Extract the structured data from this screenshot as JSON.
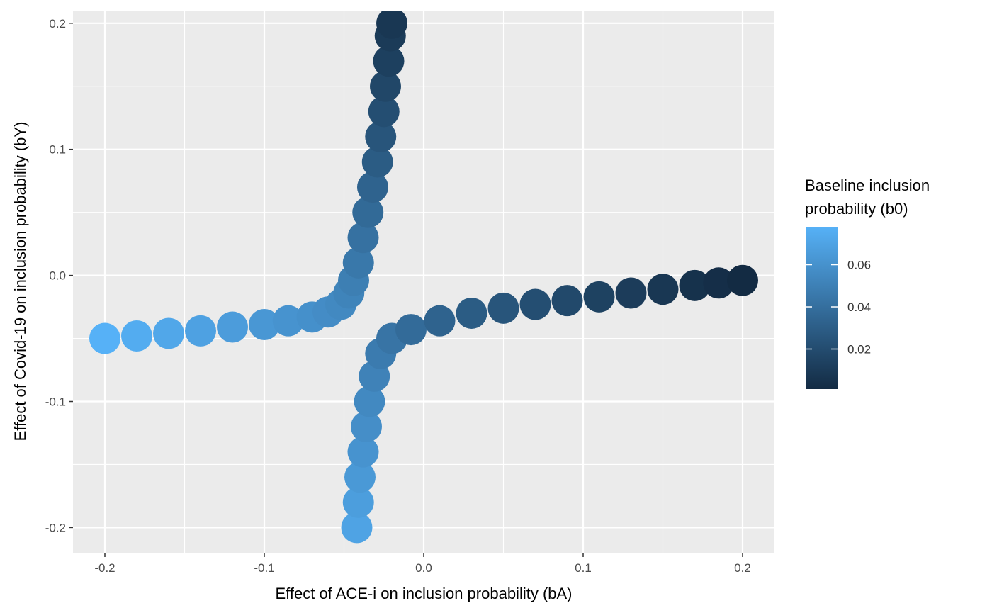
{
  "chart_data": {
    "type": "scatter",
    "title": "",
    "xlabel": "Effect of ACE-i on inclusion probability (bA)",
    "ylabel": "Effect of Covid-19 on inclusion probability (bY)",
    "xlim": [
      -0.22,
      0.22
    ],
    "ylim": [
      -0.22,
      0.21
    ],
    "x_ticks": [
      -0.2,
      -0.1,
      0.0,
      0.1,
      0.2
    ],
    "x_tick_labels": [
      "-0.2",
      "-0.1",
      "0.0",
      "0.1",
      "0.2"
    ],
    "y_ticks": [
      -0.2,
      -0.1,
      0.0,
      0.1,
      0.2
    ],
    "y_tick_labels": [
      "-0.2",
      "-0.1",
      "0.0",
      "0.1",
      "0.2"
    ],
    "grid": true,
    "color_scale": {
      "title_lines": [
        "Baseline inclusion",
        "probability (b0)"
      ],
      "range": [
        0.001,
        0.078
      ],
      "ticks": [
        0.02,
        0.04,
        0.06
      ],
      "tick_labels": [
        "0.02",
        "0.04",
        "0.06"
      ],
      "low_color": "#132B43",
      "high_color": "#56B1F7",
      "legend_placement": "right"
    },
    "branches": [
      {
        "name": "",
        "points": [
          {
            "x": -0.2,
            "y": -0.05,
            "b0": 0.078
          },
          {
            "x": -0.18,
            "y": -0.048,
            "b0": 0.075
          },
          {
            "x": -0.16,
            "y": -0.046,
            "b0": 0.072
          },
          {
            "x": -0.14,
            "y": -0.044,
            "b0": 0.069
          },
          {
            "x": -0.12,
            "y": -0.041,
            "b0": 0.066
          },
          {
            "x": -0.1,
            "y": -0.039,
            "b0": 0.063
          },
          {
            "x": -0.085,
            "y": -0.036,
            "b0": 0.061
          },
          {
            "x": -0.07,
            "y": -0.033,
            "b0": 0.059
          },
          {
            "x": -0.06,
            "y": -0.029,
            "b0": 0.057
          },
          {
            "x": -0.052,
            "y": -0.023,
            "b0": 0.055
          },
          {
            "x": -0.047,
            "y": -0.014,
            "b0": 0.052
          },
          {
            "x": -0.044,
            "y": -0.004,
            "b0": 0.049
          },
          {
            "x": -0.041,
            "y": 0.01,
            "b0": 0.045
          },
          {
            "x": -0.038,
            "y": 0.03,
            "b0": 0.041
          },
          {
            "x": -0.035,
            "y": 0.05,
            "b0": 0.037
          },
          {
            "x": -0.032,
            "y": 0.07,
            "b0": 0.033
          },
          {
            "x": -0.029,
            "y": 0.09,
            "b0": 0.029
          },
          {
            "x": -0.027,
            "y": 0.11,
            "b0": 0.025
          },
          {
            "x": -0.025,
            "y": 0.13,
            "b0": 0.021
          },
          {
            "x": -0.024,
            "y": 0.15,
            "b0": 0.017
          },
          {
            "x": -0.022,
            "y": 0.17,
            "b0": 0.013
          },
          {
            "x": -0.021,
            "y": 0.19,
            "b0": 0.01
          },
          {
            "x": -0.02,
            "y": 0.2,
            "b0": 0.008
          }
        ]
      },
      {
        "name": "",
        "points": [
          {
            "x": -0.042,
            "y": -0.2,
            "b0": 0.07
          },
          {
            "x": -0.041,
            "y": -0.18,
            "b0": 0.067
          },
          {
            "x": -0.04,
            "y": -0.16,
            "b0": 0.064
          },
          {
            "x": -0.038,
            "y": -0.14,
            "b0": 0.061
          },
          {
            "x": -0.036,
            "y": -0.12,
            "b0": 0.058
          },
          {
            "x": -0.034,
            "y": -0.1,
            "b0": 0.055
          },
          {
            "x": -0.031,
            "y": -0.08,
            "b0": 0.051
          },
          {
            "x": -0.027,
            "y": -0.062,
            "b0": 0.047
          },
          {
            "x": -0.02,
            "y": -0.05,
            "b0": 0.043
          },
          {
            "x": -0.008,
            "y": -0.043,
            "b0": 0.038
          },
          {
            "x": 0.01,
            "y": -0.036,
            "b0": 0.033
          },
          {
            "x": 0.03,
            "y": -0.03,
            "b0": 0.029
          },
          {
            "x": 0.05,
            "y": -0.026,
            "b0": 0.025
          },
          {
            "x": 0.07,
            "y": -0.023,
            "b0": 0.021
          },
          {
            "x": 0.09,
            "y": -0.02,
            "b0": 0.018
          },
          {
            "x": 0.11,
            "y": -0.017,
            "b0": 0.014
          },
          {
            "x": 0.13,
            "y": -0.014,
            "b0": 0.011
          },
          {
            "x": 0.15,
            "y": -0.011,
            "b0": 0.008
          },
          {
            "x": 0.17,
            "y": -0.008,
            "b0": 0.005
          },
          {
            "x": 0.185,
            "y": -0.006,
            "b0": 0.003
          },
          {
            "x": 0.2,
            "y": -0.004,
            "b0": 0.001
          }
        ]
      }
    ]
  }
}
